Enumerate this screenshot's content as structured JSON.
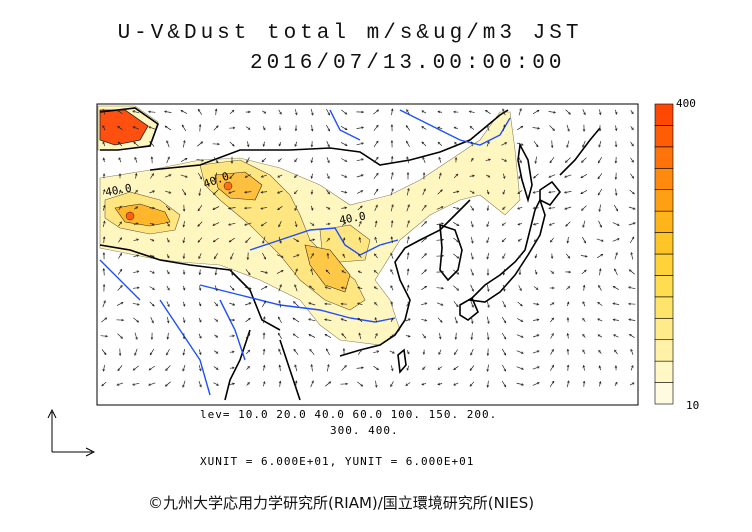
{
  "title": {
    "line1": "U-V&Dust total m/s&ug/m3 JST",
    "line2": "2016/07/13.00:00:00"
  },
  "levels_text": {
    "line1": "lev= 10.0 20.0 40.0 60.0 100. 150. 200.",
    "line2": "300. 400."
  },
  "units_text": "XUNIT = 6.000E+01, YUNIT = 6.000E+01",
  "copyright": "©九州大学応用力学研究所(RIAM)/国立環境研究所(NIES)",
  "colorbar": {
    "max_label": "400",
    "min_label": "10",
    "colors": [
      "#fffbe0",
      "#fff7c6",
      "#fff1a8",
      "#ffeb8a",
      "#ffe46c",
      "#ffdc50",
      "#ffd23a",
      "#ffc428",
      "#ffb41c",
      "#ffa014",
      "#ff8a0e",
      "#ff740a",
      "#ff5c06",
      "#ff4804"
    ]
  },
  "contour_labels": [
    "40.0",
    "40.0",
    "40.0"
  ],
  "colors": {
    "coast": "#000000",
    "river": "#1e50ff",
    "dust_light": "#fff8c4",
    "dust_mid": "#ffe070",
    "dust_high": "#ffb020",
    "dust_peak": "#ff4a10"
  },
  "icons": [
    "unit-vector-arrow-icon",
    "wind-arrow-icon"
  ]
}
